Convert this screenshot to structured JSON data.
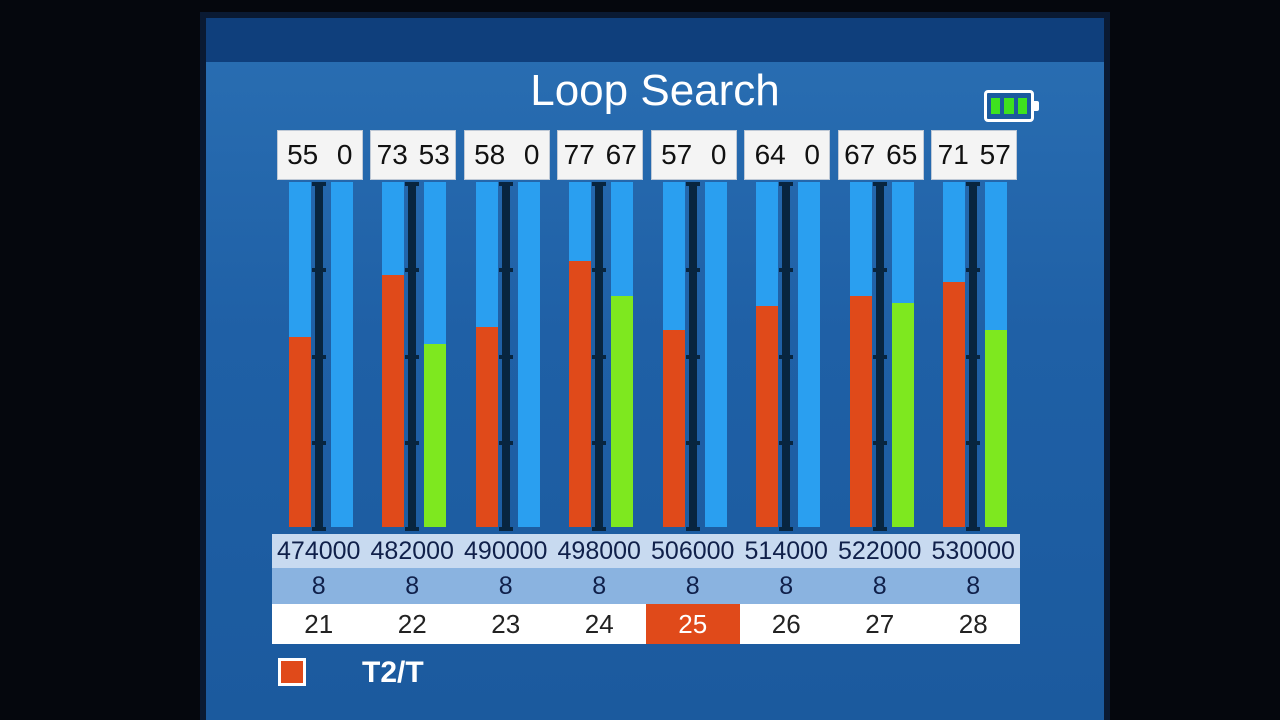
{
  "title": "Loop Search",
  "battery": {
    "icon": "battery-icon",
    "cells": 3,
    "color": "#3ee21f"
  },
  "colors": {
    "signal": "#e04a1a",
    "quality": "#7ee81f",
    "bar_bg": "#2a9ff0",
    "selected": "#e04a1a"
  },
  "channels": [
    {
      "signal": "55",
      "quality": "0",
      "frequency": "474000",
      "bandwidth": "8",
      "channel": "21"
    },
    {
      "signal": "73",
      "quality": "53",
      "frequency": "482000",
      "bandwidth": "8",
      "channel": "22"
    },
    {
      "signal": "58",
      "quality": "0",
      "frequency": "490000",
      "bandwidth": "8",
      "channel": "23"
    },
    {
      "signal": "77",
      "quality": "67",
      "frequency": "498000",
      "bandwidth": "8",
      "channel": "24"
    },
    {
      "signal": "57",
      "quality": "0",
      "frequency": "506000",
      "bandwidth": "8",
      "channel": "25"
    },
    {
      "signal": "64",
      "quality": "0",
      "frequency": "514000",
      "bandwidth": "8",
      "channel": "26"
    },
    {
      "signal": "67",
      "quality": "65",
      "frequency": "522000",
      "bandwidth": "8",
      "channel": "27"
    },
    {
      "signal": "71",
      "quality": "57",
      "frequency": "530000",
      "bandwidth": "8",
      "channel": "28"
    }
  ],
  "selected_channel": "25",
  "legend": {
    "label": "T2/T"
  }
}
